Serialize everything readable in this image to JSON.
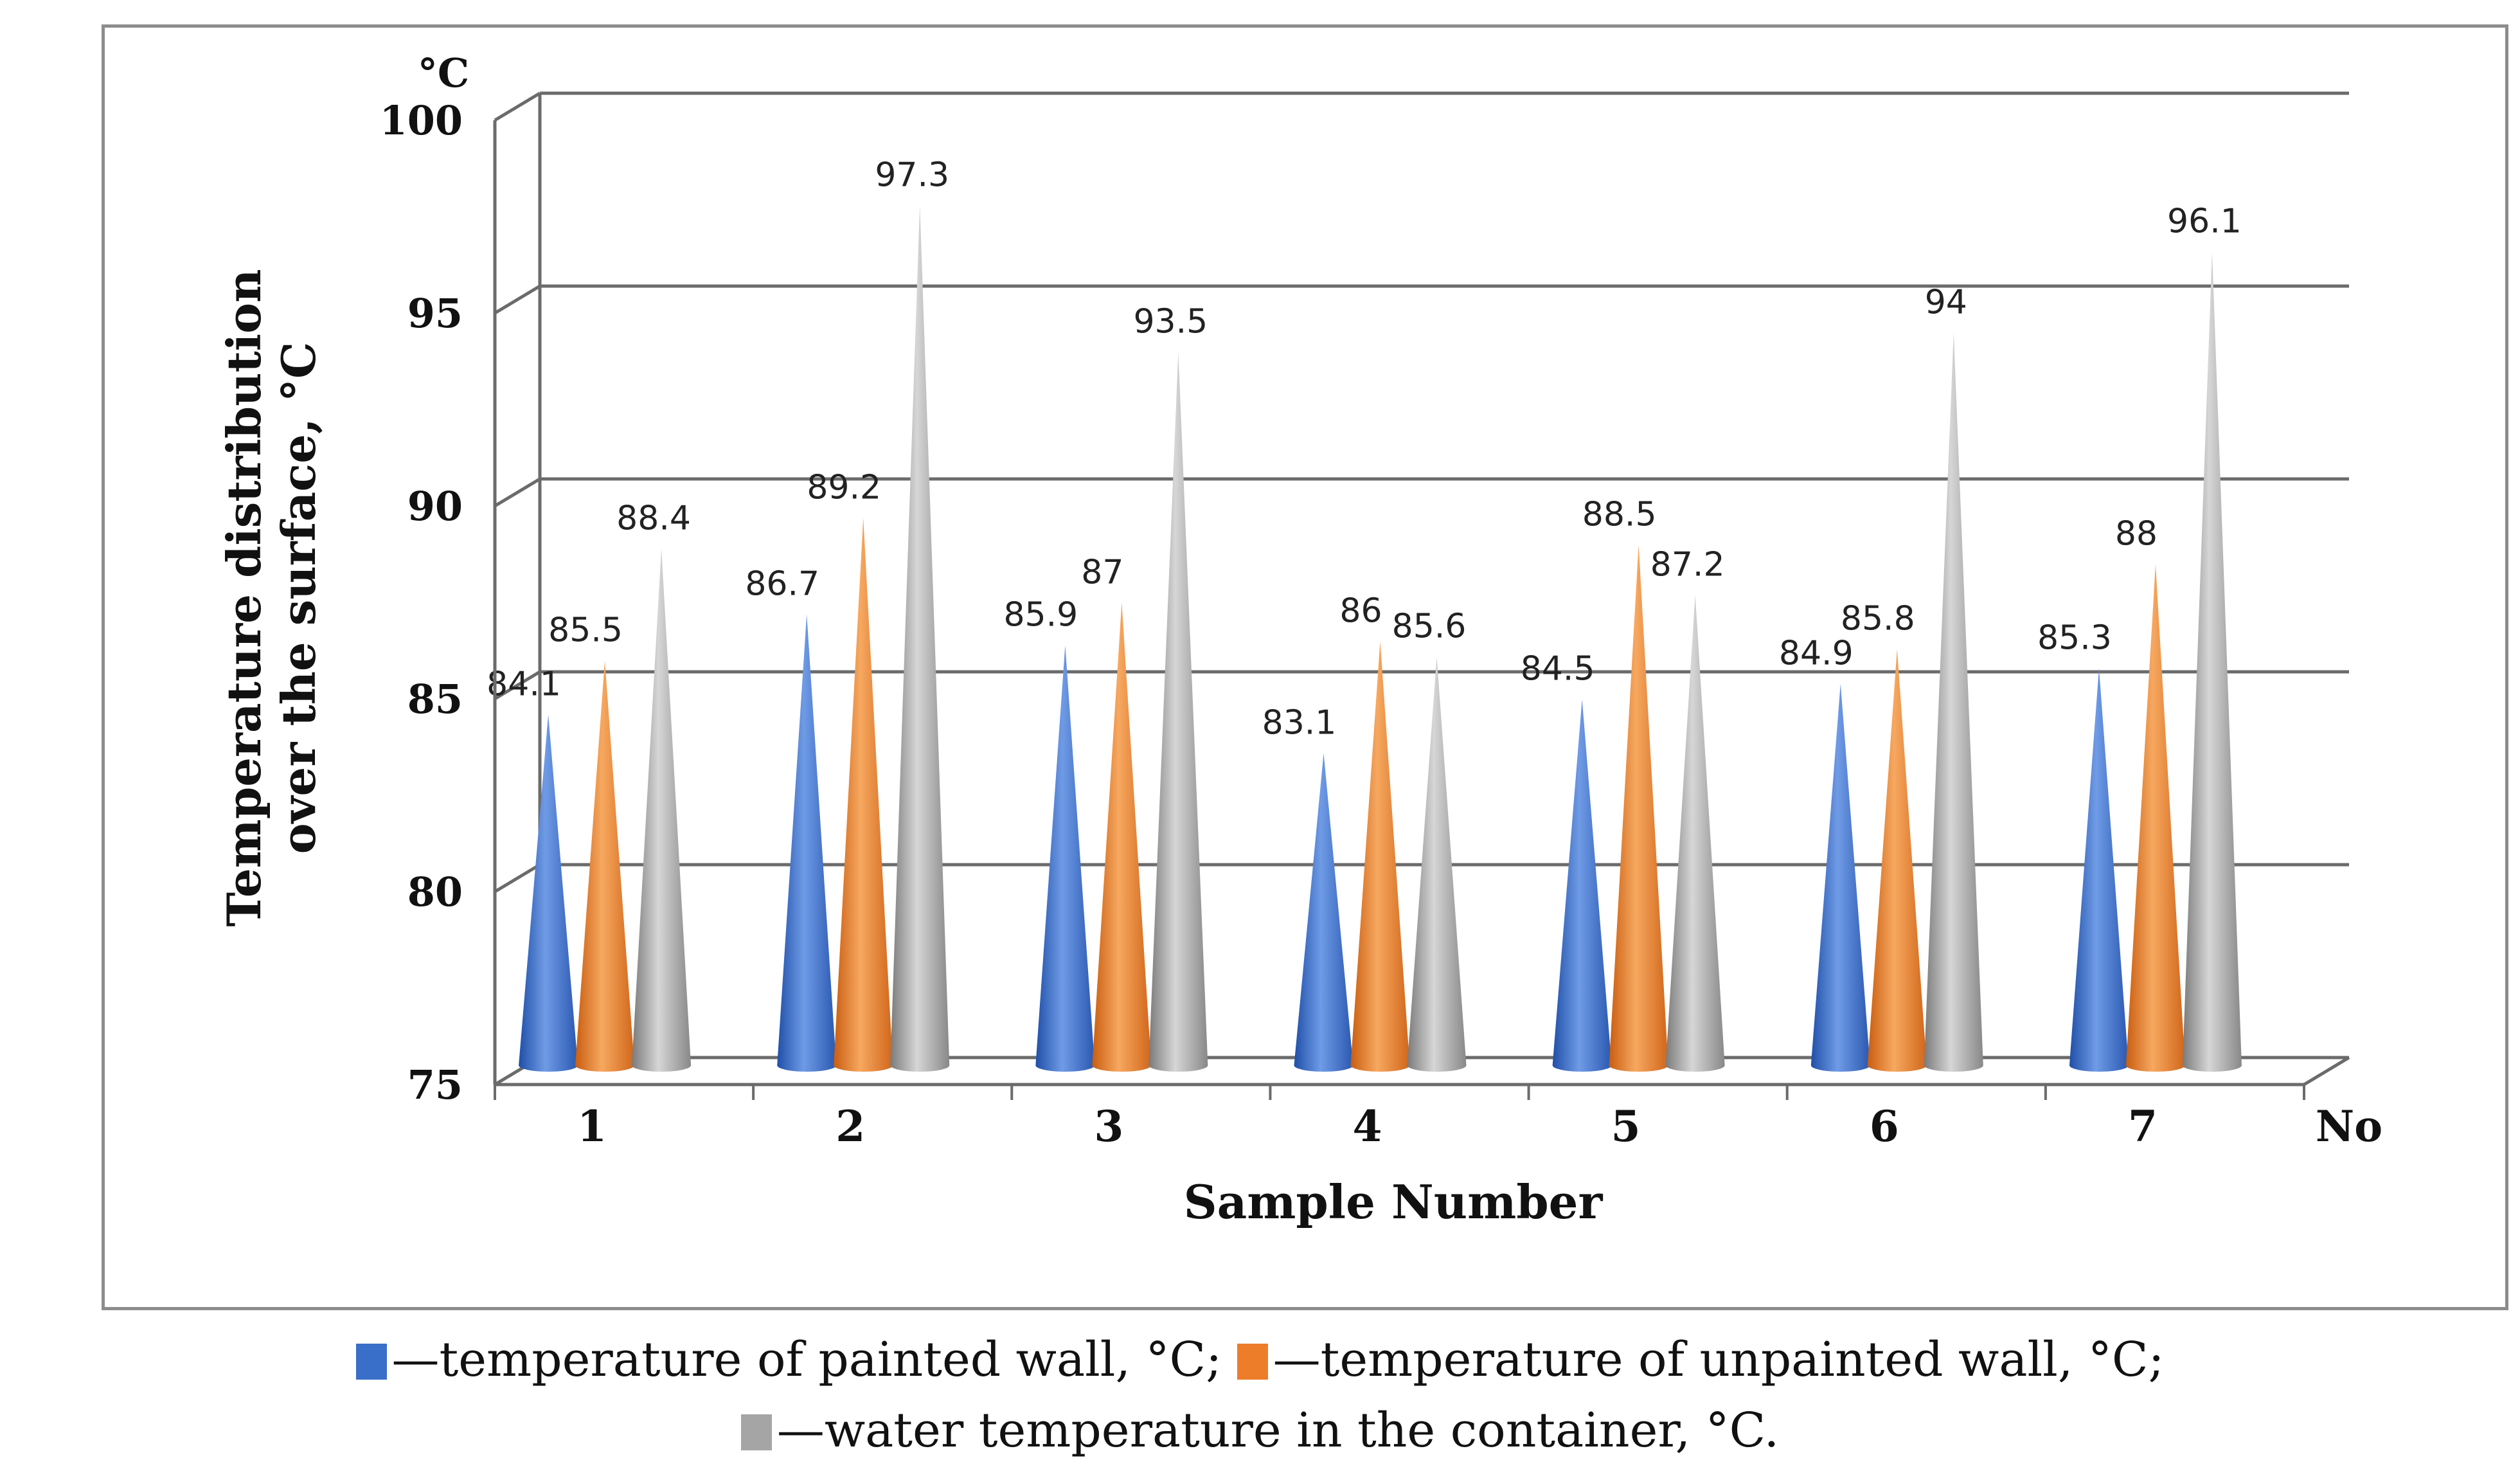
{
  "chart_data": {
    "type": "bar",
    "style": "3d-cone",
    "categories": [
      "1",
      "2",
      "3",
      "4",
      "5",
      "6",
      "7"
    ],
    "series": [
      {
        "name": "temperature of painted wall, °C",
        "color": "#3a6fc9",
        "values": [
          84.1,
          86.7,
          85.9,
          83.1,
          84.5,
          84.9,
          85.3
        ]
      },
      {
        "name": "temperature of unpainted wall, °C",
        "color": "#ee7d2a",
        "values": [
          85.5,
          89.2,
          87,
          86,
          88.5,
          85.8,
          88
        ]
      },
      {
        "name": "water temperature in the container, °C",
        "color": "#a5a5a5",
        "values": [
          88.4,
          97.3,
          93.5,
          85.6,
          87.2,
          94,
          96.1
        ]
      }
    ],
    "data_labels": [
      [
        "84.1",
        "86.7",
        "85.9",
        "83.1",
        "84.5",
        "84.9",
        "85.3"
      ],
      [
        "85.5",
        "89.2",
        "87",
        "86",
        "88.5",
        "85.8",
        "88"
      ],
      [
        "88.4",
        "97.3",
        "93.5",
        "85.6",
        "87.2",
        "94",
        "96.1"
      ]
    ],
    "ylim": [
      75,
      100
    ],
    "yticks": [
      "75",
      "80",
      "85",
      "90",
      "95",
      "100"
    ],
    "ylabel_line1": "Temperature distribution",
    "ylabel_line2": "over the surface, °C",
    "y_unit": "°C",
    "xlabel": "Sample Number",
    "x_unit": "No",
    "grid": true
  },
  "legend": {
    "items": [
      {
        "text": "—temperature of painted wall, °C;",
        "color": "#3a6fc9"
      },
      {
        "text": "—temperature of unpainted wall, °C;",
        "color": "#ee7d2a"
      },
      {
        "text": "—water temperature in the container, °C.",
        "color": "#a5a5a5"
      }
    ]
  }
}
